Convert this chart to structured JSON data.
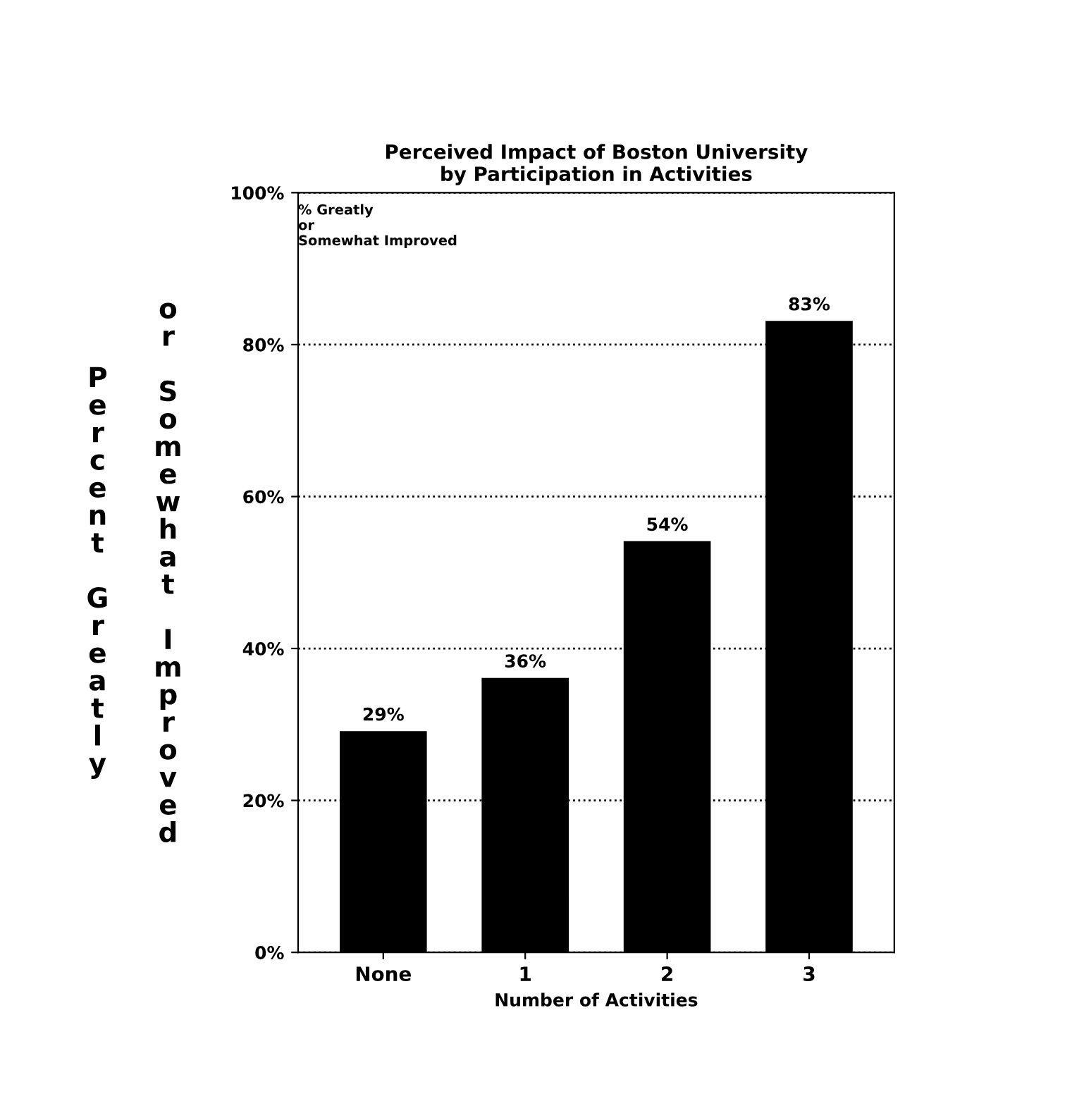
{
  "chart_data": {
    "type": "bar",
    "title": "Perceived Impact of Boston University\nby Participation in Activities",
    "xlabel": "Number of Activities",
    "ylabel": "Percent Greatly or Somewhat Improved",
    "annotations": [
      "% Greatly or Somewhat Improved"
    ],
    "categories": [
      "None",
      "1",
      "2",
      "3"
    ],
    "values": [
      29,
      36,
      54,
      83
    ],
    "value_labels": [
      "29%",
      "36%",
      "54%",
      "83%"
    ],
    "color": "#000000",
    "ylim": [
      0,
      100
    ],
    "yticks": [
      {
        "value": 0,
        "label": "0%"
      },
      {
        "value": 20,
        "label": "20%"
      },
      {
        "value": 40,
        "label": "40%"
      },
      {
        "value": 60,
        "label": "60%"
      },
      {
        "value": 80,
        "label": "80%"
      },
      {
        "value": 100,
        "label": "100%"
      }
    ],
    "grid": "y",
    "line_style": "dotted",
    "legend": false
  }
}
